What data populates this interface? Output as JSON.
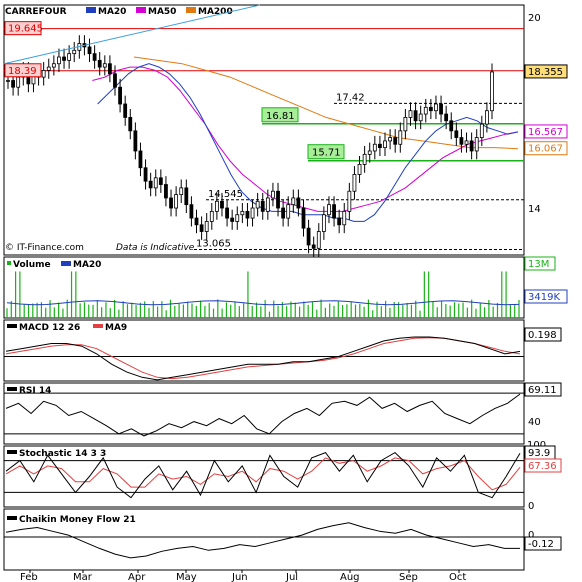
{
  "chart_data": {
    "type": "line",
    "symbol": "CARREFOUR",
    "source": "© IT-Finance.com",
    "disclaimer": "Data is Indicative",
    "x_labels": [
      "Feb",
      "Mar",
      "Apr",
      "May",
      "Jun",
      "Jul",
      "Aug",
      "Sep",
      "Oct"
    ],
    "price_panel": {
      "legend": [
        {
          "name": "CARREFOUR",
          "color": "#000000"
        },
        {
          "name": "MA20",
          "color": "#1f3fbf"
        },
        {
          "name": "MA50",
          "color": "#d400d4"
        },
        {
          "name": "MA200",
          "color": "#e07a10"
        }
      ],
      "y_ticks": [
        "20",
        "14"
      ],
      "ylim": [
        12.9,
        20.35
      ],
      "price_tags": [
        {
          "value": "19.645",
          "side": "left",
          "color": "#e00000",
          "fill": "#ffd0d0"
        },
        {
          "value": "18.39",
          "side": "left",
          "color": "#e00000",
          "fill": "#ffd0d0"
        },
        {
          "value": "18.355",
          "side": "right",
          "color": "#000000",
          "fill": "#ffdd77"
        },
        {
          "value": "16.567",
          "side": "right",
          "color": "#d400d4",
          "fill": "#ffffff"
        },
        {
          "value": "16.067",
          "side": "right",
          "color": "#e07a10",
          "fill": "#ffffff"
        }
      ],
      "horizontal_lines": [
        {
          "value": 19.645,
          "style": "solid",
          "color": "#e00000"
        },
        {
          "value": 18.39,
          "style": "solid",
          "color": "#e00000"
        },
        {
          "value": 17.42,
          "style": "dashed",
          "color": "#000000",
          "label": "17.42"
        },
        {
          "value": 16.81,
          "style": "solid",
          "color": "#19b319",
          "label": "16.81"
        },
        {
          "value": 15.71,
          "style": "solid",
          "color": "#19b319",
          "label": "15.71"
        },
        {
          "value": 14.545,
          "style": "dashed",
          "color": "#000000",
          "label": "14.545"
        },
        {
          "value": 13.065,
          "style": "dashed",
          "color": "#000000",
          "label": "13.065"
        }
      ],
      "close_series": [
        18.1,
        17.9,
        18.2,
        18.4,
        18.0,
        18.3,
        18.2,
        18.4,
        18.5,
        18.6,
        18.8,
        18.7,
        18.9,
        19.0,
        19.2,
        19.1,
        18.9,
        18.7,
        18.5,
        18.6,
        18.3,
        17.9,
        17.4,
        17.0,
        16.6,
        16.0,
        15.5,
        15.1,
        14.9,
        15.2,
        15.0,
        14.6,
        14.3,
        14.7,
        14.9,
        14.4,
        14.0,
        13.8,
        13.6,
        13.9,
        14.2,
        14.5,
        14.3,
        14.0,
        13.9,
        14.1,
        14.2,
        14.0,
        14.3,
        14.5,
        14.2,
        14.6,
        14.8,
        14.3,
        14.0,
        14.4,
        14.6,
        14.3,
        13.7,
        13.2,
        13.1,
        13.6,
        14.1,
        14.4,
        14.0,
        13.8,
        14.2,
        14.8,
        15.3,
        15.6,
        15.9,
        16.0,
        16.2,
        16.1,
        16.3,
        16.4,
        16.2,
        16.6,
        17.0,
        17.2,
        16.9,
        17.1,
        17.3,
        17.2,
        17.4,
        17.1,
        16.9,
        16.6,
        16.4,
        16.2,
        16.3,
        16.0,
        16.4,
        16.8,
        17.2,
        18.355
      ],
      "ma20": [
        17.4,
        17.7,
        18.0,
        18.3,
        18.5,
        18.6,
        18.5,
        18.3,
        18.0,
        17.6,
        17.1,
        16.5,
        15.9,
        15.3,
        14.8,
        14.5,
        14.3,
        14.2,
        14.2,
        14.2,
        14.1,
        14.1,
        14.1,
        14.0,
        14.0,
        13.9,
        13.9,
        14.1,
        14.5,
        15.0,
        15.5,
        15.9,
        16.3,
        16.6,
        16.8,
        16.9,
        17.0,
        16.9,
        16.7,
        16.6,
        16.5,
        16.567
      ],
      "ma50": [
        18.1,
        18.2,
        18.4,
        18.5,
        18.5,
        18.4,
        18.2,
        17.8,
        17.3,
        16.8,
        16.2,
        15.7,
        15.3,
        15.0,
        14.7,
        14.5,
        14.4,
        14.3,
        14.2,
        14.2,
        14.2,
        14.3,
        14.4,
        14.5,
        14.7,
        14.9,
        15.2,
        15.5,
        15.8,
        16.0,
        16.2,
        16.3,
        16.4,
        16.5,
        16.567
      ],
      "ma200": [
        18.8,
        18.7,
        18.6,
        18.4,
        18.2,
        17.9,
        17.6,
        17.3,
        17.0,
        16.8,
        16.6,
        16.4,
        16.3,
        16.2,
        16.1,
        16.1,
        16.067
      ]
    },
    "volume_panel": {
      "legend": [
        {
          "name": "Volume",
          "color": "#19b319"
        },
        {
          "name": "MA20",
          "color": "#1f3fbf"
        }
      ],
      "tags": [
        {
          "value": "13M",
          "color": "#19b319"
        },
        {
          "value": "3419K",
          "color": "#1f3fbf"
        }
      ],
      "spike_positions": [
        0.02,
        0.13,
        0.47,
        0.82,
        0.97
      ],
      "baseline": 0.25
    },
    "macd_panel": {
      "legend": [
        {
          "name": "MACD 12 26",
          "color": "#000000"
        },
        {
          "name": "MA9",
          "color": "#e04040"
        }
      ],
      "tag": "0.198",
      "macd": [
        0.2,
        0.3,
        0.4,
        0.5,
        0.5,
        0.4,
        0.1,
        -0.3,
        -0.6,
        -0.8,
        -0.9,
        -0.8,
        -0.7,
        -0.6,
        -0.5,
        -0.4,
        -0.3,
        -0.3,
        -0.3,
        -0.2,
        -0.2,
        -0.1,
        0.0,
        0.2,
        0.4,
        0.6,
        0.7,
        0.75,
        0.75,
        0.7,
        0.6,
        0.5,
        0.3,
        0.1,
        0.198
      ],
      "signal": [
        0.1,
        0.2,
        0.3,
        0.4,
        0.45,
        0.45,
        0.3,
        0.0,
        -0.3,
        -0.6,
        -0.8,
        -0.85,
        -0.8,
        -0.7,
        -0.6,
        -0.5,
        -0.4,
        -0.35,
        -0.3,
        -0.25,
        -0.2,
        -0.15,
        -0.05,
        0.1,
        0.3,
        0.5,
        0.6,
        0.7,
        0.72,
        0.7,
        0.6,
        0.5,
        0.35,
        0.2,
        0.1
      ]
    },
    "rsi_panel": {
      "legend": [
        {
          "name": "RSI 14",
          "color": "#000000"
        }
      ],
      "tag": "69.11",
      "y_ticks": [
        "40"
      ],
      "values": [
        55,
        60,
        50,
        62,
        58,
        48,
        52,
        45,
        38,
        30,
        35,
        28,
        33,
        40,
        36,
        42,
        38,
        45,
        40,
        48,
        35,
        30,
        42,
        50,
        55,
        48,
        60,
        62,
        58,
        66,
        55,
        60,
        52,
        58,
        62,
        50,
        45,
        40,
        48,
        55,
        60,
        69.11
      ]
    },
    "stochastic_panel": {
      "legend": [
        {
          "name": "Stochastic 14 3 3",
          "color": "#000000"
        }
      ],
      "tags": [
        {
          "value": "93.9",
          "color": "#000000"
        },
        {
          "value": "67.36",
          "color": "#e04040"
        }
      ],
      "y_ticks": [
        "100",
        "0"
      ],
      "k": [
        60,
        80,
        40,
        90,
        55,
        20,
        50,
        85,
        30,
        10,
        45,
        70,
        25,
        60,
        15,
        80,
        40,
        70,
        20,
        90,
        50,
        30,
        85,
        95,
        60,
        90,
        40,
        80,
        95,
        70,
        30,
        85,
        60,
        90,
        20,
        10,
        50,
        93.9
      ],
      "d": [
        55,
        70,
        55,
        70,
        65,
        40,
        40,
        65,
        55,
        30,
        30,
        55,
        45,
        50,
        35,
        55,
        50,
        60,
        40,
        65,
        60,
        45,
        60,
        85,
        75,
        80,
        60,
        70,
        85,
        80,
        55,
        65,
        70,
        80,
        50,
        25,
        35,
        67.36
      ]
    },
    "cmf_panel": {
      "legend": [
        {
          "name": "Chaikin Money Flow 21",
          "color": "#000000"
        }
      ],
      "tag": "-0.12",
      "y_ticks": [
        "0"
      ],
      "values": [
        0.05,
        0.08,
        0.1,
        0.06,
        0.02,
        -0.05,
        -0.12,
        -0.18,
        -0.22,
        -0.2,
        -0.15,
        -0.12,
        -0.1,
        -0.14,
        -0.12,
        -0.08,
        -0.1,
        -0.06,
        -0.02,
        0.02,
        0.08,
        0.12,
        0.15,
        0.1,
        0.06,
        0.04,
        0.08,
        0.02,
        -0.02,
        -0.06,
        -0.1,
        -0.08,
        -0.12,
        -0.12
      ]
    }
  }
}
